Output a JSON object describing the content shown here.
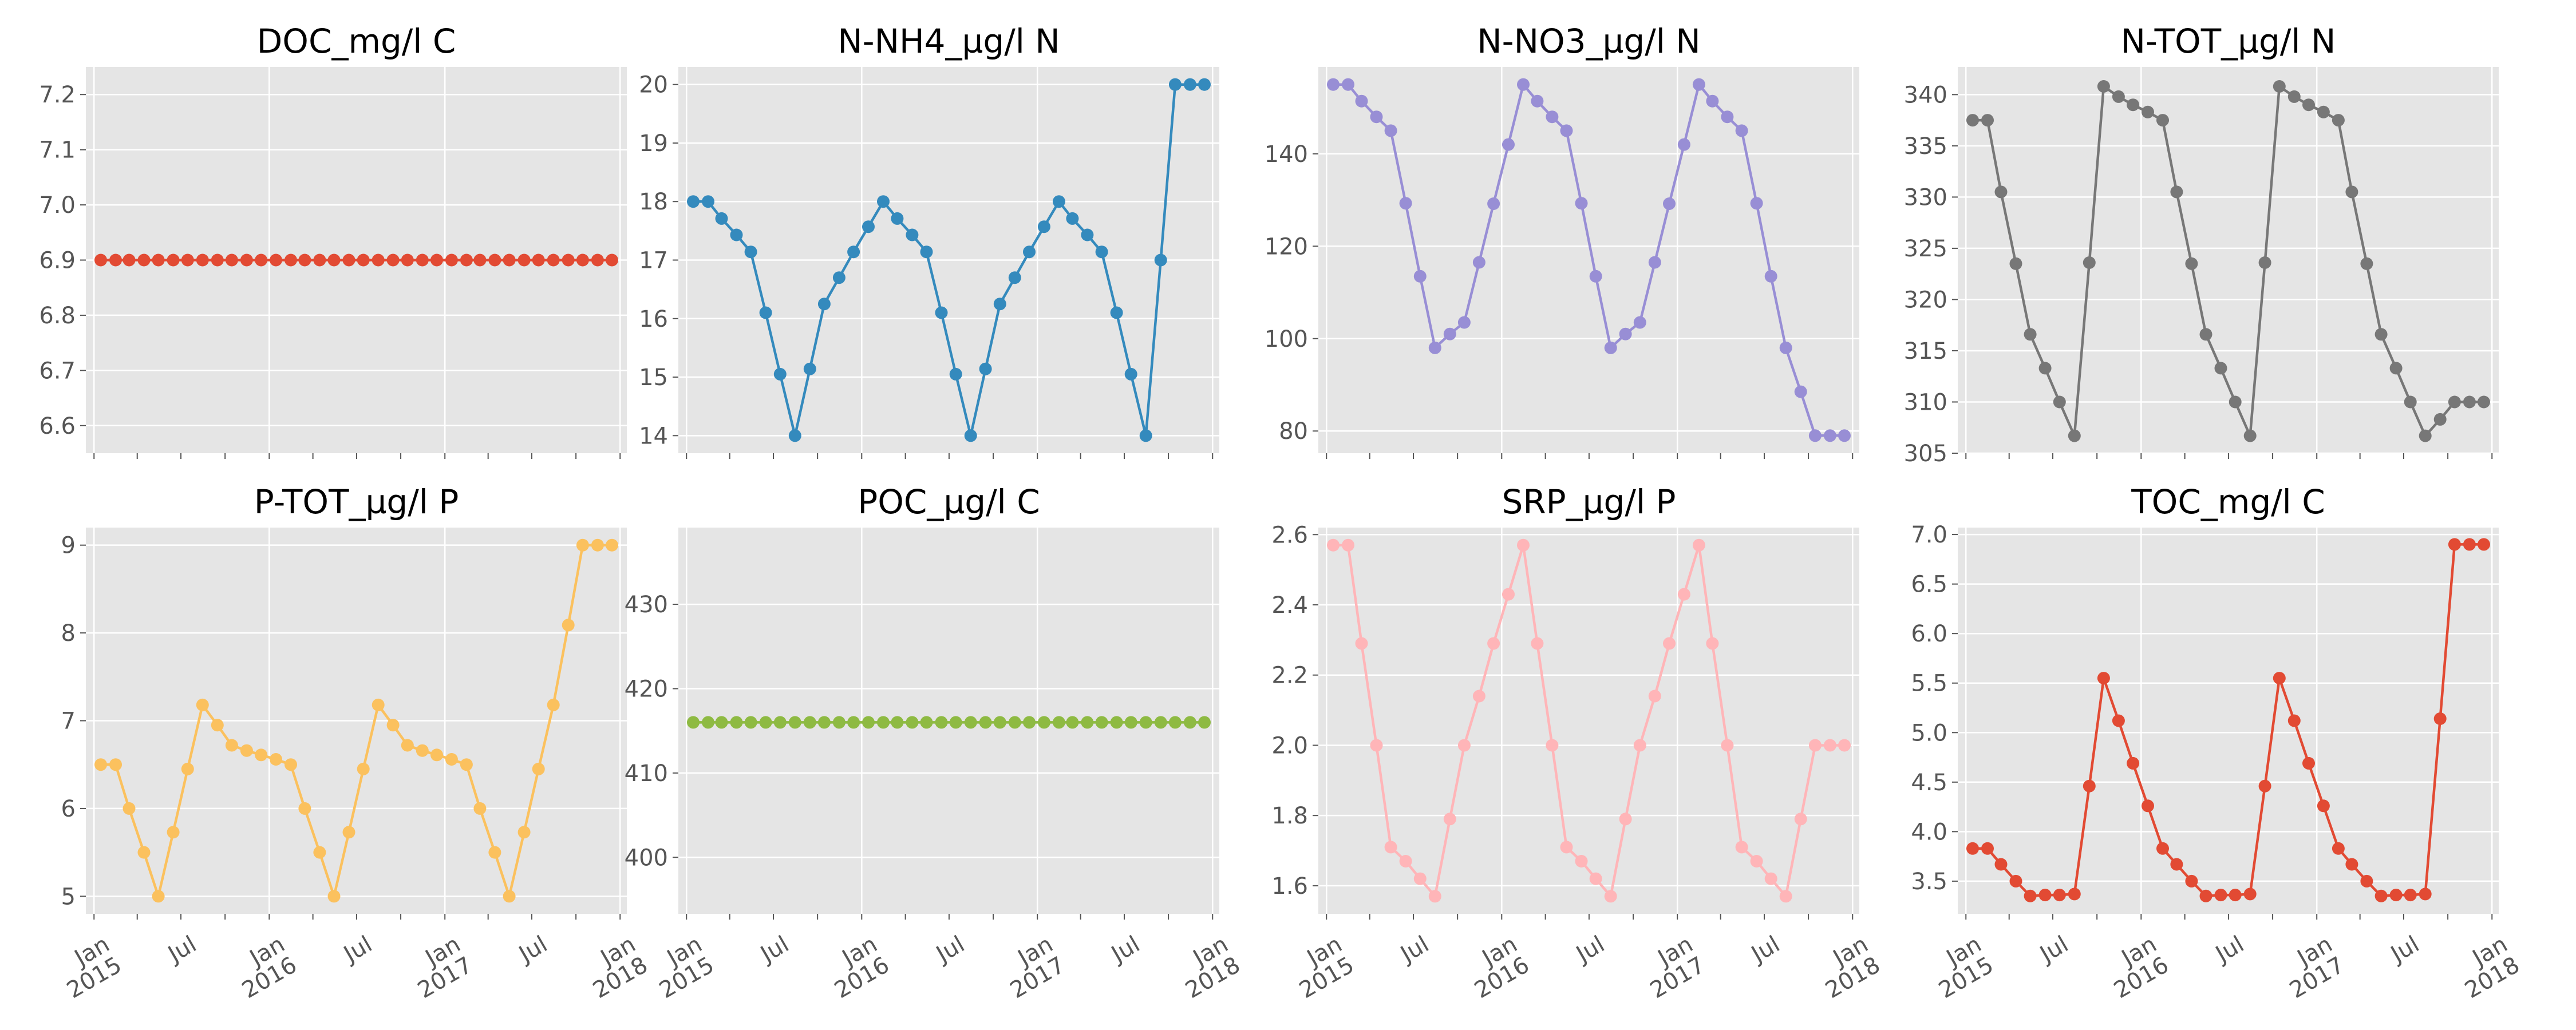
{
  "figure": {
    "style": "ggplot",
    "x_date_range": [
      "2014-12-15",
      "2018-01-15"
    ]
  },
  "chart_data": [
    {
      "type": "line",
      "title": "DOC_mg/l C",
      "color": "#E24A33",
      "ylim": [
        6.55,
        7.25
      ],
      "yticks": [
        6.6,
        6.7,
        6.8,
        6.9,
        7.0,
        7.1,
        7.2
      ],
      "ytick_labels": [
        "6.6",
        "6.7",
        "6.8",
        "6.9",
        "7.0",
        "7.1",
        "7.2"
      ],
      "xtick_labels": [],
      "series": [
        {
          "values": [
            6.9,
            6.9,
            6.9,
            6.9,
            6.9,
            6.9,
            6.9,
            6.9,
            6.9,
            6.9,
            6.9,
            6.9,
            6.9,
            6.9,
            6.9,
            6.9,
            6.9,
            6.9,
            6.9,
            6.9,
            6.9,
            6.9,
            6.9,
            6.9,
            6.9,
            6.9,
            6.9,
            6.9,
            6.9,
            6.9,
            6.9,
            6.9,
            6.9,
            6.9,
            6.9,
            6.9
          ]
        }
      ]
    },
    {
      "type": "line",
      "title": "N-NH4_µg/l N",
      "color": "#348ABD",
      "ylim": [
        13.7,
        20.3
      ],
      "yticks": [
        14,
        15,
        16,
        17,
        18,
        19,
        20
      ],
      "ytick_labels": [
        "14",
        "15",
        "16",
        "17",
        "18",
        "19",
        "20"
      ],
      "xtick_labels": [],
      "series": [
        {
          "values": [
            18,
            18,
            17.71,
            17.43,
            17.14,
            16.1,
            15.05,
            14,
            15.14,
            16.25,
            16.7,
            17.14,
            17.57,
            18,
            17.71,
            17.43,
            17.14,
            16.1,
            15.05,
            14,
            15.14,
            16.25,
            16.7,
            17.14,
            17.57,
            18,
            17.71,
            17.43,
            17.14,
            16.1,
            15.05,
            14,
            17,
            20,
            20,
            20
          ]
        }
      ]
    },
    {
      "type": "line",
      "title": "N-NO3_µg/l N",
      "color": "#988ED5",
      "ylim": [
        75.2,
        158.8
      ],
      "yticks": [
        80,
        100,
        120,
        140
      ],
      "ytick_labels": [
        "80",
        "100",
        "120",
        "140"
      ],
      "xtick_labels": [],
      "series": [
        {
          "values": [
            155,
            155,
            151.4,
            148,
            145,
            129.3,
            113.5,
            98,
            101,
            103.5,
            116.5,
            129.2,
            142,
            155,
            151.4,
            148,
            145,
            129.3,
            113.5,
            98,
            101,
            103.5,
            116.5,
            129.2,
            142,
            155,
            151.4,
            148,
            145,
            129.3,
            113.5,
            98,
            88.5,
            79,
            79,
            79
          ]
        }
      ]
    },
    {
      "type": "line",
      "title": "N-TOT_µg/l N",
      "color": "#777777",
      "ylim": [
        305,
        342.7
      ],
      "yticks": [
        305,
        310,
        315,
        320,
        325,
        330,
        335,
        340
      ],
      "ytick_labels": [
        "305",
        "310",
        "315",
        "320",
        "325",
        "330",
        "335",
        "340"
      ],
      "xtick_labels": [],
      "series": [
        {
          "values": [
            337.5,
            337.5,
            330.5,
            323.5,
            316.6,
            313.3,
            310,
            306.7,
            323.6,
            340.8,
            339.8,
            339,
            338.3,
            337.5,
            330.5,
            323.5,
            316.6,
            313.3,
            310,
            306.7,
            323.6,
            340.8,
            339.8,
            339,
            338.3,
            337.5,
            330.5,
            323.5,
            316.6,
            313.3,
            310,
            306.7,
            308.3,
            310,
            310,
            310
          ]
        }
      ]
    },
    {
      "type": "line",
      "title": "P-TOT_µg/l P",
      "color": "#FBC15E",
      "ylim": [
        4.8,
        9.2
      ],
      "yticks": [
        5,
        6,
        7,
        8,
        9
      ],
      "ytick_labels": [
        "5",
        "6",
        "7",
        "8",
        "9"
      ],
      "xtick_labels": [
        "Jan\n2015",
        "Jul",
        "Jan\n2016",
        "Jul",
        "Jan\n2017",
        "Jul",
        "Jan\n2018"
      ],
      "series": [
        {
          "values": [
            6.5,
            6.5,
            6,
            5.5,
            5,
            5.73,
            6.45,
            7.18,
            6.95,
            6.72,
            6.66,
            6.61,
            6.56,
            6.5,
            6,
            5.5,
            5,
            5.73,
            6.45,
            7.18,
            6.95,
            6.72,
            6.66,
            6.61,
            6.56,
            6.5,
            6,
            5.5,
            5,
            5.73,
            6.45,
            7.18,
            8.09,
            9,
            9,
            9
          ]
        }
      ]
    },
    {
      "type": "line",
      "title": "POC_µg/l C",
      "color": "#8EBA42",
      "ylim": [
        393.3,
        439.1
      ],
      "yticks": [
        400,
        410,
        420,
        430
      ],
      "ytick_labels": [
        "400",
        "410",
        "420",
        "430"
      ],
      "xtick_labels": [
        "Jan\n2015",
        "Jul",
        "Jan\n2016",
        "Jul",
        "Jan\n2017",
        "Jul",
        "Jan\n2018"
      ],
      "series": [
        {
          "values": [
            416,
            416,
            416,
            416,
            416,
            416,
            416,
            416,
            416,
            416,
            416,
            416,
            416,
            416,
            416,
            416,
            416,
            416,
            416,
            416,
            416,
            416,
            416,
            416,
            416,
            416,
            416,
            416,
            416,
            416,
            416,
            416,
            416,
            416,
            416,
            416
          ]
        }
      ]
    },
    {
      "type": "line",
      "title": "SRP_µg/l P",
      "color": "#FFB5B8",
      "ylim": [
        1.52,
        2.62
      ],
      "yticks": [
        1.6,
        1.8,
        2.0,
        2.2,
        2.4,
        2.6
      ],
      "ytick_labels": [
        "1.6",
        "1.8",
        "2.0",
        "2.2",
        "2.4",
        "2.6"
      ],
      "xtick_labels": [
        "Jan\n2015",
        "Jul",
        "Jan\n2016",
        "Jul",
        "Jan\n2017",
        "Jul",
        "Jan\n2018"
      ],
      "series": [
        {
          "values": [
            2.57,
            2.57,
            2.29,
            2,
            1.71,
            1.67,
            1.62,
            1.57,
            1.79,
            2,
            2.14,
            2.29,
            2.43,
            2.57,
            2.29,
            2,
            1.71,
            1.67,
            1.62,
            1.57,
            1.79,
            2,
            2.14,
            2.29,
            2.43,
            2.57,
            2.29,
            2,
            1.71,
            1.67,
            1.62,
            1.57,
            1.79,
            2,
            2,
            2
          ]
        }
      ]
    },
    {
      "type": "line",
      "title": "TOC_mg/l C",
      "color": "#E24A33",
      "ylim": [
        3.17,
        7.07
      ],
      "yticks": [
        3.5,
        4.0,
        4.5,
        5.0,
        5.5,
        6.0,
        6.5,
        7.0
      ],
      "ytick_labels": [
        "3.5",
        "4.0",
        "4.5",
        "5.0",
        "5.5",
        "6.0",
        "6.5",
        "7.0"
      ],
      "xtick_labels": [
        "Jan\n2015",
        "Jul",
        "Jan\n2016",
        "Jul",
        "Jan\n2017",
        "Jul",
        "Jan\n2018"
      ],
      "series": [
        {
          "values": [
            3.83,
            3.83,
            3.67,
            3.5,
            3.35,
            3.36,
            3.36,
            3.37,
            4.46,
            5.55,
            5.12,
            4.69,
            4.26,
            3.83,
            3.67,
            3.5,
            3.35,
            3.36,
            3.36,
            3.37,
            4.46,
            5.55,
            5.12,
            4.69,
            4.26,
            3.83,
            3.67,
            3.5,
            3.35,
            3.36,
            3.36,
            3.37,
            5.14,
            6.9,
            6.9,
            6.9
          ]
        }
      ]
    }
  ]
}
